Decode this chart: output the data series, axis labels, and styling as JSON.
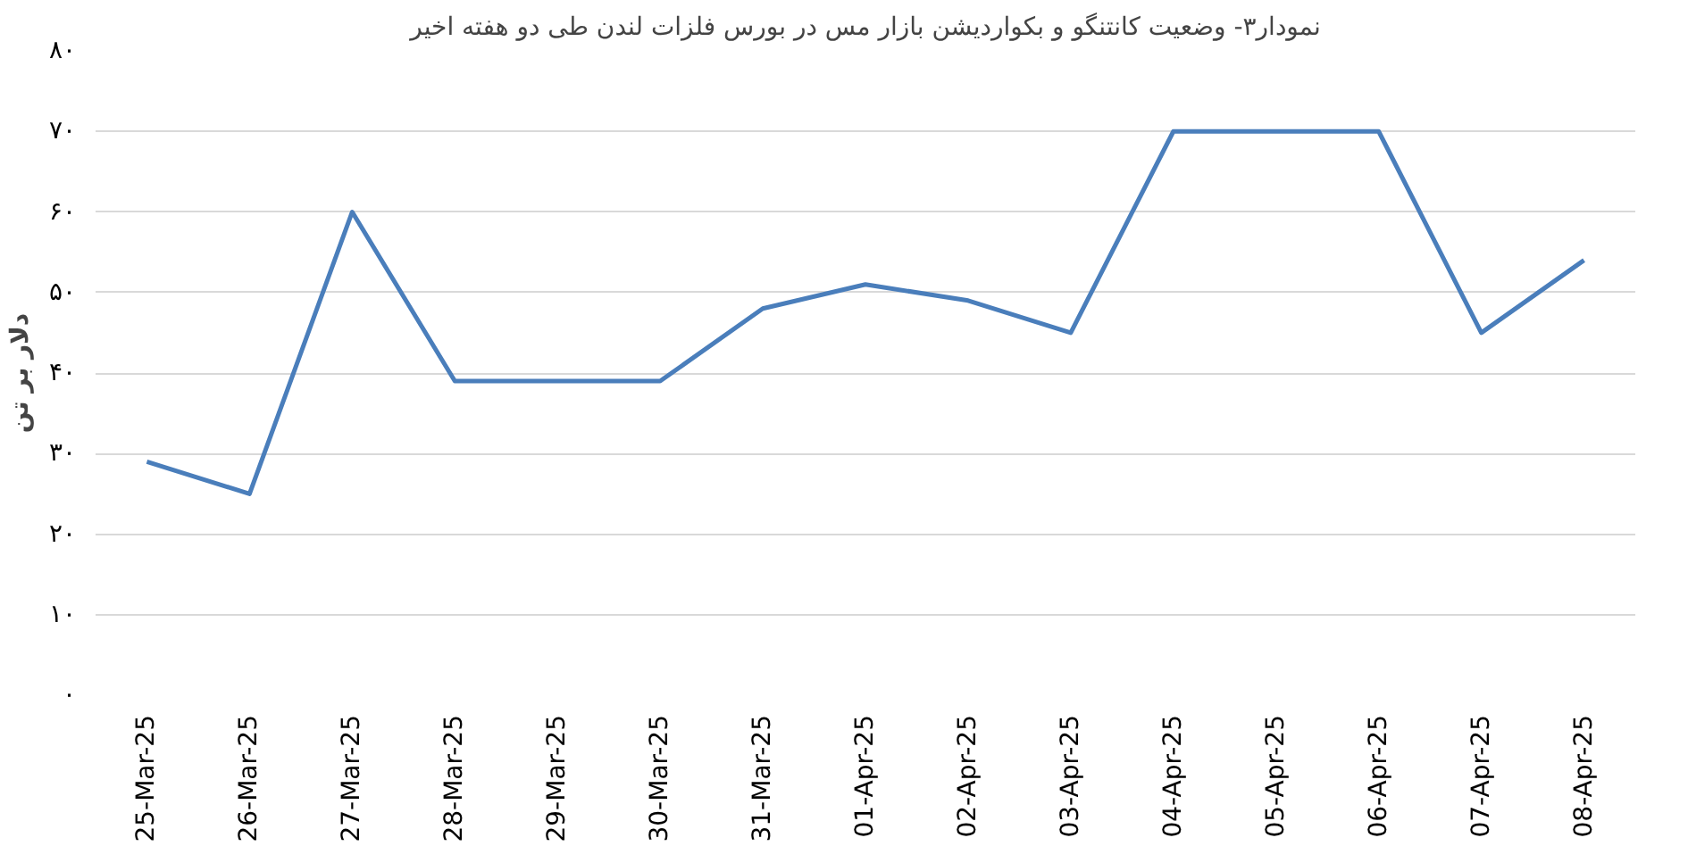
{
  "chart_data": {
    "type": "line",
    "title": "نمودار۳- وضعیت کانتنگو و بکواردیشن بازار مس در بورس فلزات لندن طی دو هفته اخیر",
    "ylabel": "دلار بر تن",
    "categories": [
      "25-Mar-25",
      "26-Mar-25",
      "27-Mar-25",
      "28-Mar-25",
      "29-Mar-25",
      "30-Mar-25",
      "31-Mar-25",
      "01-Apr-25",
      "02-Apr-25",
      "03-Apr-25",
      "04-Apr-25",
      "05-Apr-25",
      "06-Apr-25",
      "07-Apr-25",
      "08-Apr-25"
    ],
    "series": [
      {
        "color": "#4a7ebb",
        "values": [
          29,
          25,
          60,
          39,
          39,
          39,
          48,
          51,
          49,
          45,
          70,
          70,
          70,
          45,
          54
        ]
      }
    ],
    "ylim": [
      0,
      80
    ],
    "yticks": [
      {
        "value": 0,
        "label": "۰"
      },
      {
        "value": 10,
        "label": "۱۰"
      },
      {
        "value": 20,
        "label": "۲۰"
      },
      {
        "value": 30,
        "label": "۳۰"
      },
      {
        "value": 40,
        "label": "۴۰"
      },
      {
        "value": 50,
        "label": "۵۰"
      },
      {
        "value": 60,
        "label": "۶۰"
      },
      {
        "value": 70,
        "label": "۷۰"
      },
      {
        "value": 80,
        "label": "۸۰"
      }
    ],
    "grid": "y",
    "marker": "none",
    "line_style": "solid"
  }
}
